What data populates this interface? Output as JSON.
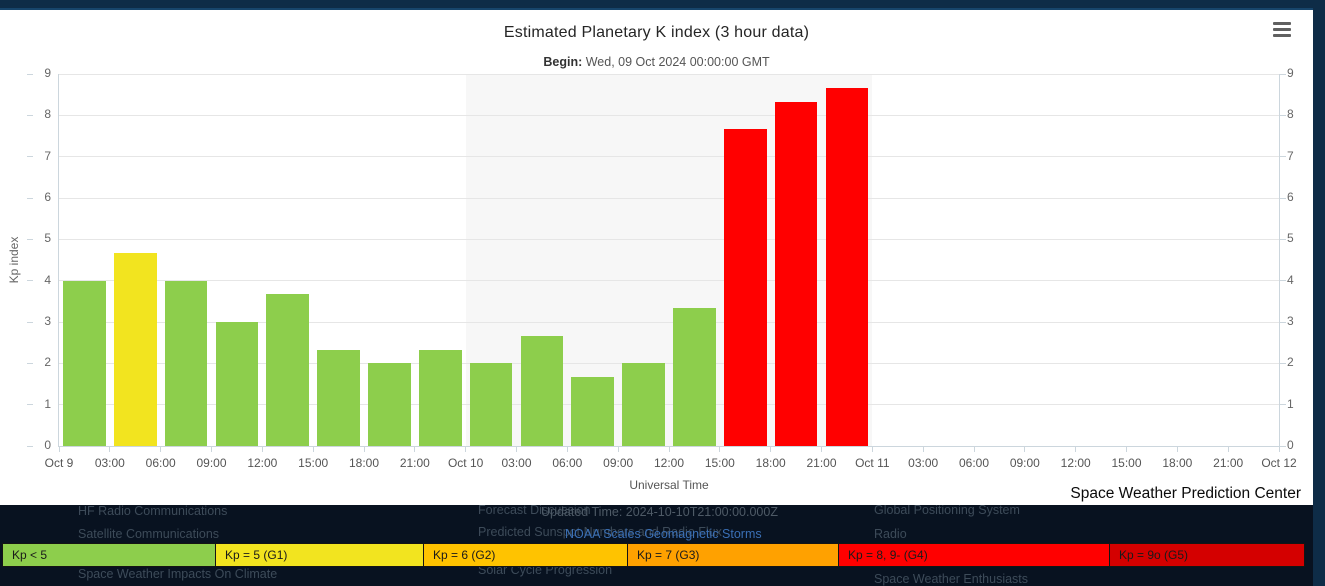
{
  "chart_data": {
    "type": "bar",
    "title": "Estimated Planetary K index (3 hour data)",
    "subtitle": {
      "label": "Begin:",
      "value": "Wed, 09 Oct 2024 00:00:00 GMT"
    },
    "xlabel": "Universal Time",
    "ylabel": "Kp index",
    "ylim": [
      0,
      9
    ],
    "y_ticks": [
      0,
      1,
      2,
      3,
      4,
      5,
      6,
      7,
      8,
      9
    ],
    "x_tick_labels": [
      "Oct 9",
      "03:00",
      "06:00",
      "09:00",
      "12:00",
      "15:00",
      "18:00",
      "21:00",
      "Oct 10",
      "03:00",
      "06:00",
      "09:00",
      "12:00",
      "15:00",
      "18:00",
      "21:00",
      "Oct 11",
      "03:00",
      "06:00",
      "09:00",
      "12:00",
      "15:00",
      "18:00",
      "21:00",
      "Oct 12"
    ],
    "slots_total": 24,
    "grid": true,
    "highlight_band": {
      "from_slot": 8,
      "to_slot": 16,
      "color": "#f7f7f7"
    },
    "palette": {
      "green": "#8DCE4C",
      "yellow": "#F2E41F",
      "red": "#FF0000"
    },
    "points": [
      {
        "time": "Oct 9 00:00",
        "kp": 4.0,
        "level": "green"
      },
      {
        "time": "Oct 9 03:00",
        "kp": 4.67,
        "level": "yellow"
      },
      {
        "time": "Oct 9 06:00",
        "kp": 4.0,
        "level": "green"
      },
      {
        "time": "Oct 9 09:00",
        "kp": 3.0,
        "level": "green"
      },
      {
        "time": "Oct 9 12:00",
        "kp": 3.67,
        "level": "green"
      },
      {
        "time": "Oct 9 15:00",
        "kp": 2.33,
        "level": "green"
      },
      {
        "time": "Oct 9 18:00",
        "kp": 2.0,
        "level": "green"
      },
      {
        "time": "Oct 9 21:00",
        "kp": 2.33,
        "level": "green"
      },
      {
        "time": "Oct 10 00:00",
        "kp": 2.0,
        "level": "green"
      },
      {
        "time": "Oct 10 03:00",
        "kp": 2.67,
        "level": "green"
      },
      {
        "time": "Oct 10 06:00",
        "kp": 1.67,
        "level": "green"
      },
      {
        "time": "Oct 10 09:00",
        "kp": 2.0,
        "level": "green"
      },
      {
        "time": "Oct 10 12:00",
        "kp": 3.33,
        "level": "green"
      },
      {
        "time": "Oct 10 15:00",
        "kp": 7.67,
        "level": "red"
      },
      {
        "time": "Oct 10 18:00",
        "kp": 8.33,
        "level": "red"
      },
      {
        "time": "Oct 10 21:00",
        "kp": 8.67,
        "level": "red"
      }
    ]
  },
  "brand": {
    "label": "Space Weather Prediction Center"
  },
  "legend": {
    "items": [
      {
        "label": "Kp < 5",
        "color": "#8DCE4C"
      },
      {
        "label": "Kp = 5 (G1)",
        "color": "#F2E41F"
      },
      {
        "label": "Kp = 6 (G2)",
        "color": "#FFC300"
      },
      {
        "label": "Kp = 7 (G3)",
        "color": "#FFA100"
      },
      {
        "label": "Kp = 8, 9- (G4)",
        "color": "#FF0000"
      },
      {
        "label": "Kp = 9o (G5)",
        "color": "#D40000"
      }
    ]
  },
  "footer": {
    "links": [
      {
        "col": 0,
        "row": 0,
        "label": "HF Radio Communications"
      },
      {
        "col": 0,
        "row": 1,
        "label": "Satellite Communications"
      },
      {
        "col": 0,
        "row": 2,
        "label": "Space Weather Impacts On Climate"
      },
      {
        "col": 1,
        "row": 0,
        "label": "Forecast Discussion"
      },
      {
        "col": 1,
        "row": 1,
        "label": "Predicted Sunspot Numbers and Radio Flux"
      },
      {
        "col": 1,
        "row": 2,
        "label": "Solar Cycle Progression"
      },
      {
        "col": 2,
        "row": 0,
        "label": "Global Positioning System"
      },
      {
        "col": 2,
        "row": 1,
        "label": "Radio"
      },
      {
        "col": 2,
        "row": 2,
        "label": "Space Weather Enthusiasts"
      }
    ],
    "updated_time": "Updated Time: 2024-10-10T21:00:00.000Z",
    "scales_link": "NOAA Scales Geomagnetic Storms"
  }
}
